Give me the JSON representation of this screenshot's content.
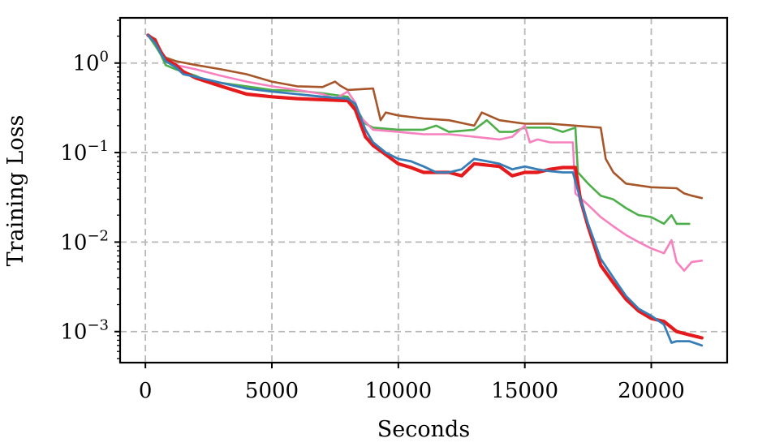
{
  "chart_data": {
    "type": "line",
    "title": "",
    "xlabel": "Seconds",
    "ylabel": "Training Loss",
    "xlim": [
      -1000,
      23000
    ],
    "ylim": [
      0.00045,
      3.2
    ],
    "yscale": "log",
    "grid": true,
    "legend": "none",
    "x_ticks": [
      {
        "value": 0,
        "label": "0"
      },
      {
        "value": 5000,
        "label": "5000"
      },
      {
        "value": 10000,
        "label": "10000"
      },
      {
        "value": 15000,
        "label": "15000"
      },
      {
        "value": 20000,
        "label": "20000"
      }
    ],
    "y_ticks": [
      {
        "value": 1,
        "base": "10",
        "exp": "0"
      },
      {
        "value": 0.1,
        "base": "10",
        "exp": "−1"
      },
      {
        "value": 0.01,
        "base": "10",
        "exp": "−2"
      },
      {
        "value": 0.001,
        "base": "10",
        "exp": "−3"
      }
    ],
    "series": [
      {
        "color": "#a65628",
        "width": 2.6,
        "points": [
          [
            100,
            2.05
          ],
          [
            400,
            1.85
          ],
          [
            600,
            1.35
          ],
          [
            800,
            1.15
          ],
          [
            1200,
            1.05
          ],
          [
            2000,
            0.95
          ],
          [
            3000,
            0.85
          ],
          [
            4000,
            0.75
          ],
          [
            5000,
            0.62
          ],
          [
            6000,
            0.55
          ],
          [
            7000,
            0.54
          ],
          [
            7500,
            0.62
          ],
          [
            7700,
            0.56
          ],
          [
            8000,
            0.5
          ],
          [
            9000,
            0.52
          ],
          [
            9300,
            0.23
          ],
          [
            9500,
            0.28
          ],
          [
            10000,
            0.26
          ],
          [
            11000,
            0.24
          ],
          [
            12000,
            0.23
          ],
          [
            13000,
            0.2
          ],
          [
            13300,
            0.28
          ],
          [
            14000,
            0.23
          ],
          [
            15000,
            0.21
          ],
          [
            16000,
            0.21
          ],
          [
            17000,
            0.2
          ],
          [
            18000,
            0.19
          ],
          [
            18200,
            0.085
          ],
          [
            18500,
            0.06
          ],
          [
            19000,
            0.045
          ],
          [
            20000,
            0.041
          ],
          [
            21000,
            0.04
          ],
          [
            21300,
            0.035
          ],
          [
            21600,
            0.033
          ],
          [
            22000,
            0.031
          ]
        ]
      },
      {
        "color": "#4daf4a",
        "width": 2.6,
        "points": [
          [
            100,
            2.05
          ],
          [
            400,
            1.55
          ],
          [
            600,
            1.25
          ],
          [
            800,
            0.95
          ],
          [
            1200,
            0.85
          ],
          [
            1500,
            0.8
          ],
          [
            2000,
            0.72
          ],
          [
            2500,
            0.62
          ],
          [
            3000,
            0.6
          ],
          [
            4000,
            0.55
          ],
          [
            5000,
            0.5
          ],
          [
            6000,
            0.49
          ],
          [
            7000,
            0.46
          ],
          [
            8000,
            0.42
          ],
          [
            8300,
            0.33
          ],
          [
            8500,
            0.26
          ],
          [
            8700,
            0.21
          ],
          [
            9000,
            0.19
          ],
          [
            10000,
            0.18
          ],
          [
            11000,
            0.18
          ],
          [
            11500,
            0.2
          ],
          [
            12000,
            0.17
          ],
          [
            13000,
            0.18
          ],
          [
            13500,
            0.23
          ],
          [
            14000,
            0.17
          ],
          [
            14500,
            0.17
          ],
          [
            15000,
            0.19
          ],
          [
            15500,
            0.19
          ],
          [
            16000,
            0.19
          ],
          [
            16500,
            0.17
          ],
          [
            17000,
            0.19
          ],
          [
            17100,
            0.06
          ],
          [
            17500,
            0.045
          ],
          [
            18000,
            0.033
          ],
          [
            18500,
            0.03
          ],
          [
            19000,
            0.024
          ],
          [
            19500,
            0.02
          ],
          [
            20000,
            0.019
          ],
          [
            20500,
            0.016
          ],
          [
            20800,
            0.02
          ],
          [
            21000,
            0.016
          ],
          [
            21500,
            0.016
          ]
        ]
      },
      {
        "color": "#f781bf",
        "width": 2.6,
        "points": [
          [
            100,
            2.05
          ],
          [
            400,
            1.75
          ],
          [
            600,
            1.3
          ],
          [
            800,
            1.1
          ],
          [
            1200,
            0.95
          ],
          [
            2000,
            0.85
          ],
          [
            3000,
            0.72
          ],
          [
            4000,
            0.62
          ],
          [
            5000,
            0.55
          ],
          [
            6000,
            0.5
          ],
          [
            7000,
            0.45
          ],
          [
            7500,
            0.4
          ],
          [
            8000,
            0.48
          ],
          [
            8300,
            0.36
          ],
          [
            8500,
            0.25
          ],
          [
            9000,
            0.18
          ],
          [
            10000,
            0.17
          ],
          [
            11000,
            0.16
          ],
          [
            12000,
            0.16
          ],
          [
            13000,
            0.15
          ],
          [
            14000,
            0.14
          ],
          [
            14500,
            0.15
          ],
          [
            15000,
            0.2
          ],
          [
            15200,
            0.13
          ],
          [
            15500,
            0.14
          ],
          [
            16000,
            0.13
          ],
          [
            16500,
            0.13
          ],
          [
            16900,
            0.13
          ],
          [
            17000,
            0.035
          ],
          [
            17500,
            0.026
          ],
          [
            18000,
            0.019
          ],
          [
            18500,
            0.015
          ],
          [
            19000,
            0.012
          ],
          [
            19500,
            0.01
          ],
          [
            20000,
            0.0085
          ],
          [
            20500,
            0.0075
          ],
          [
            20800,
            0.0105
          ],
          [
            21000,
            0.006
          ],
          [
            21300,
            0.0048
          ],
          [
            21600,
            0.006
          ],
          [
            22000,
            0.0062
          ]
        ]
      },
      {
        "color": "#e41a1c",
        "width": 4.2,
        "points": [
          [
            100,
            2.05
          ],
          [
            400,
            1.75
          ],
          [
            600,
            1.35
          ],
          [
            800,
            1.1
          ],
          [
            1200,
            0.95
          ],
          [
            1500,
            0.8
          ],
          [
            2000,
            0.68
          ],
          [
            3000,
            0.55
          ],
          [
            4000,
            0.45
          ],
          [
            5000,
            0.42
          ],
          [
            6000,
            0.4
          ],
          [
            7000,
            0.39
          ],
          [
            8000,
            0.38
          ],
          [
            8300,
            0.3
          ],
          [
            8700,
            0.15
          ],
          [
            9000,
            0.12
          ],
          [
            9500,
            0.095
          ],
          [
            10000,
            0.075
          ],
          [
            10500,
            0.068
          ],
          [
            11000,
            0.06
          ],
          [
            12000,
            0.06
          ],
          [
            12500,
            0.055
          ],
          [
            13000,
            0.075
          ],
          [
            14000,
            0.07
          ],
          [
            14500,
            0.055
          ],
          [
            15000,
            0.06
          ],
          [
            15500,
            0.06
          ],
          [
            16000,
            0.065
          ],
          [
            16500,
            0.068
          ],
          [
            17000,
            0.068
          ],
          [
            17200,
            0.03
          ],
          [
            17500,
            0.015
          ],
          [
            18000,
            0.0055
          ],
          [
            18500,
            0.0035
          ],
          [
            19000,
            0.0023
          ],
          [
            19500,
            0.0017
          ],
          [
            20000,
            0.0014
          ],
          [
            20500,
            0.0013
          ],
          [
            21000,
            0.001
          ],
          [
            21500,
            0.00092
          ],
          [
            22000,
            0.00085
          ]
        ]
      },
      {
        "color": "#377eb8",
        "width": 2.8,
        "points": [
          [
            100,
            2.05
          ],
          [
            400,
            1.65
          ],
          [
            600,
            1.3
          ],
          [
            800,
            1.05
          ],
          [
            1200,
            0.9
          ],
          [
            1500,
            0.75
          ],
          [
            2000,
            0.7
          ],
          [
            3000,
            0.6
          ],
          [
            4000,
            0.52
          ],
          [
            5000,
            0.48
          ],
          [
            6000,
            0.45
          ],
          [
            7000,
            0.42
          ],
          [
            8000,
            0.4
          ],
          [
            8300,
            0.35
          ],
          [
            8700,
            0.18
          ],
          [
            9000,
            0.13
          ],
          [
            9500,
            0.1
          ],
          [
            10000,
            0.085
          ],
          [
            10500,
            0.08
          ],
          [
            11000,
            0.07
          ],
          [
            11500,
            0.06
          ],
          [
            12000,
            0.06
          ],
          [
            12500,
            0.065
          ],
          [
            13000,
            0.085
          ],
          [
            13500,
            0.08
          ],
          [
            14000,
            0.075
          ],
          [
            14500,
            0.065
          ],
          [
            15000,
            0.07
          ],
          [
            15500,
            0.065
          ],
          [
            16000,
            0.062
          ],
          [
            16500,
            0.06
          ],
          [
            16900,
            0.06
          ],
          [
            17200,
            0.03
          ],
          [
            17500,
            0.016
          ],
          [
            18000,
            0.0065
          ],
          [
            18500,
            0.004
          ],
          [
            19000,
            0.0025
          ],
          [
            19500,
            0.0018
          ],
          [
            20000,
            0.0015
          ],
          [
            20500,
            0.0012
          ],
          [
            20800,
            0.00075
          ],
          [
            21000,
            0.00078
          ],
          [
            21500,
            0.00078
          ],
          [
            22000,
            0.0007
          ]
        ]
      }
    ]
  }
}
